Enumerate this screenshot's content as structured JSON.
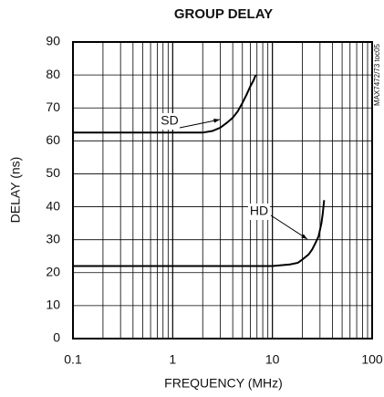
{
  "chart_data": {
    "type": "line",
    "title": "GROUP DELAY",
    "xlabel": "FREQUENCY (MHz)",
    "ylabel": "DELAY (ns)",
    "side_label": "MAX7472/73 toc05",
    "xscale": "log",
    "grid": true,
    "xlim": [
      0.1,
      100
    ],
    "xticks": [
      0.1,
      1,
      10,
      100
    ],
    "ylim": [
      0,
      90
    ],
    "yticks": [
      0,
      10,
      20,
      30,
      40,
      50,
      60,
      70,
      80,
      90
    ],
    "series": [
      {
        "name": "SD",
        "color": "#000000",
        "x": [
          0.1,
          0.5,
          1,
          2,
          2.5,
          3,
          3.5,
          4,
          4.5,
          5,
          5.5,
          6,
          6.5,
          6.8
        ],
        "values": [
          62.5,
          62.5,
          62.5,
          62.5,
          63,
          64,
          65.5,
          67,
          69,
          71.5,
          74,
          76.5,
          78.5,
          80
        ]
      },
      {
        "name": "HD",
        "color": "#000000",
        "x": [
          0.1,
          1,
          2,
          5,
          10,
          15,
          18,
          20,
          23,
          25,
          27,
          29,
          30,
          31,
          32,
          33
        ],
        "values": [
          22,
          22,
          22,
          22,
          22,
          22.5,
          23,
          24,
          25.5,
          27,
          29,
          31,
          33,
          35,
          38,
          42
        ]
      }
    ]
  }
}
